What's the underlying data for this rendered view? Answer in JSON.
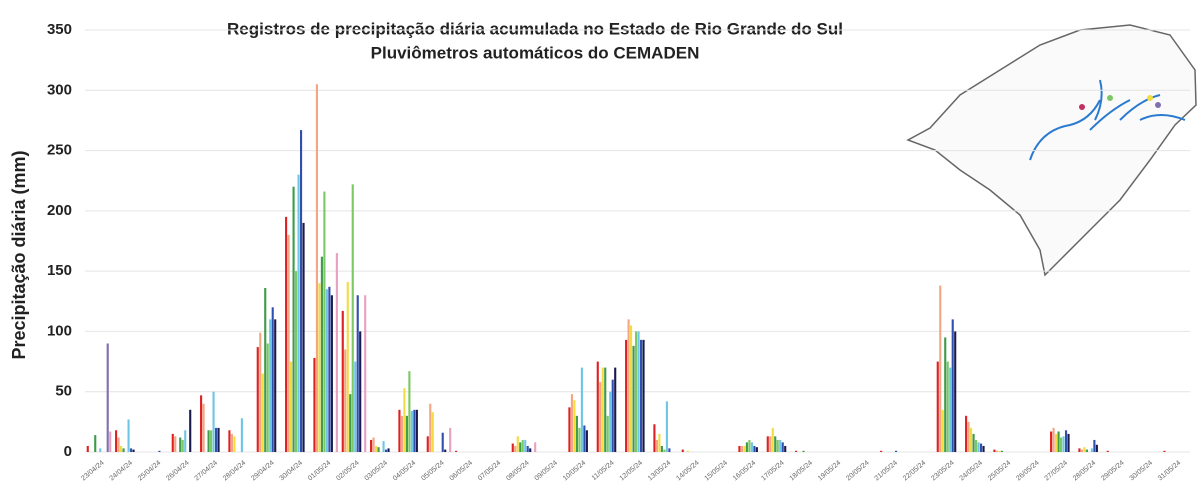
{
  "chart_data": {
    "type": "bar",
    "title": "Registros de precipitação diária acumulada no Estado de Rio Grande do Sul",
    "subtitle": "Pluviômetros automáticos do CEMADEN",
    "y_label": "Precipitação diária (mm)",
    "categories": [
      "23/04/24",
      "24/04/24",
      "25/04/24",
      "26/04/24",
      "27/04/24",
      "28/04/24",
      "29/04/24",
      "30/04/24",
      "01/05/24",
      "02/05/24",
      "03/05/24",
      "04/05/24",
      "05/05/24",
      "06/05/24",
      "07/05/24",
      "08/05/24",
      "09/05/24",
      "10/05/24",
      "11/05/24",
      "12/05/24",
      "13/05/24",
      "14/05/24",
      "15/05/24",
      "16/05/24",
      "17/05/24",
      "18/05/24",
      "19/05/24",
      "20/05/24",
      "21/05/24",
      "22/05/24",
      "23/05/24",
      "24/05/24",
      "25/05/24",
      "26/05/24",
      "27/05/24",
      "28/05/24",
      "29/05/24",
      "30/05/24",
      "31/05/24"
    ],
    "series": [
      {
        "color": "#e02020",
        "values": [
          5,
          18,
          0,
          15,
          47,
          18,
          87,
          195,
          78,
          117,
          10,
          35,
          13,
          1,
          0,
          7,
          0,
          37,
          75,
          93,
          23,
          2,
          0,
          5,
          13,
          1,
          0,
          0,
          1,
          0,
          75,
          30,
          2,
          0,
          17,
          3,
          1,
          0,
          1
        ]
      },
      {
        "color": "#f4a582",
        "values": [
          0,
          12,
          0,
          13,
          40,
          15,
          99,
          180,
          305,
          85,
          12,
          30,
          40,
          0,
          0,
          5,
          0,
          48,
          58,
          110,
          10,
          0,
          0,
          5,
          13,
          0,
          0,
          0,
          0,
          0,
          138,
          25,
          1,
          0,
          20,
          2,
          0,
          0,
          0
        ]
      },
      {
        "color": "#f2dc40",
        "values": [
          0,
          5,
          0,
          0,
          0,
          13,
          65,
          75,
          140,
          141,
          5,
          53,
          33,
          0,
          0,
          13,
          0,
          43,
          70,
          105,
          15,
          1,
          0,
          5,
          20,
          0,
          0,
          0,
          0,
          0,
          35,
          20,
          1,
          0,
          15,
          4,
          0,
          0,
          0
        ]
      },
      {
        "color": "#3f9a4a",
        "values": [
          14,
          3,
          0,
          12,
          18,
          0,
          136,
          220,
          162,
          48,
          4,
          30,
          0,
          0,
          0,
          8,
          0,
          30,
          70,
          88,
          5,
          0,
          0,
          8,
          13,
          1,
          0,
          0,
          0,
          0,
          95,
          15,
          1,
          0,
          17,
          2,
          0,
          0,
          0
        ]
      },
      {
        "color": "#7cc864",
        "values": [
          0,
          0,
          0,
          10,
          18,
          0,
          90,
          150,
          216,
          222,
          0,
          67,
          0,
          0,
          0,
          10,
          0,
          20,
          30,
          100,
          2,
          0,
          0,
          10,
          10,
          0,
          0,
          0,
          0,
          0,
          75,
          10,
          0,
          0,
          12,
          0,
          0,
          0,
          0
        ]
      },
      {
        "color": "#6ec6e6",
        "values": [
          3,
          27,
          0,
          18,
          50,
          28,
          110,
          230,
          135,
          75,
          9,
          34,
          0,
          0,
          0,
          10,
          0,
          70,
          50,
          100,
          42,
          0,
          0,
          8,
          10,
          0,
          0,
          0,
          0,
          0,
          70,
          8,
          0,
          0,
          13,
          3,
          0,
          0,
          0
        ]
      },
      {
        "color": "#3050b0",
        "values": [
          0,
          3,
          1,
          0,
          20,
          0,
          120,
          267,
          137,
          130,
          2,
          35,
          16,
          0,
          0,
          5,
          0,
          22,
          60,
          93,
          3,
          0,
          0,
          5,
          8,
          0,
          0,
          0,
          1,
          0,
          110,
          7,
          0,
          0,
          18,
          10,
          0,
          0,
          0
        ]
      },
      {
        "color": "#1a1a4e",
        "values": [
          0,
          2,
          0,
          35,
          20,
          0,
          110,
          190,
          130,
          100,
          3,
          35,
          2,
          0,
          0,
          3,
          0,
          18,
          70,
          93,
          0,
          0,
          0,
          4,
          5,
          0,
          0,
          0,
          0,
          0,
          100,
          5,
          0,
          0,
          15,
          6,
          0,
          0,
          0
        ]
      },
      {
        "color": "#8070b0",
        "values": [
          90,
          0,
          0,
          0,
          0,
          0,
          0,
          0,
          0,
          0,
          0,
          0,
          0,
          0,
          0,
          0,
          0,
          0,
          0,
          0,
          0,
          0,
          0,
          0,
          0,
          0,
          0,
          0,
          0,
          0,
          0,
          0,
          0,
          0,
          0,
          0,
          0,
          0,
          0
        ]
      },
      {
        "color": "#e8a0c0",
        "values": [
          17,
          0,
          0,
          0,
          0,
          0,
          0,
          0,
          165,
          130,
          0,
          0,
          20,
          0,
          0,
          8,
          0,
          0,
          0,
          0,
          0,
          0,
          0,
          0,
          0,
          0,
          0,
          0,
          0,
          0,
          0,
          0,
          0,
          0,
          0,
          0,
          0,
          0,
          0
        ]
      }
    ],
    "ylim": [
      0,
      350
    ],
    "yticks": [
      0,
      50,
      100,
      150,
      200,
      250,
      300,
      350
    ],
    "grid": true
  }
}
